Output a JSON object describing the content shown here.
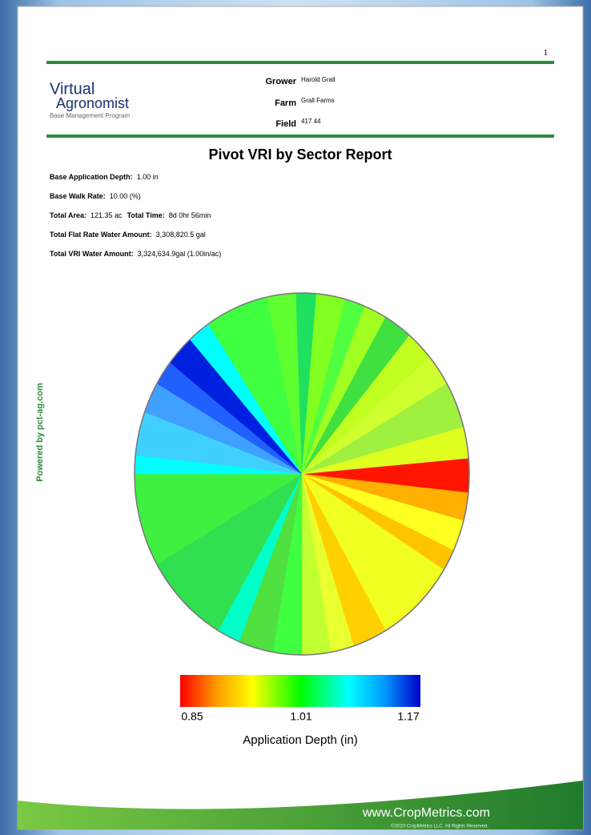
{
  "page_number": "1",
  "logo": {
    "line1": "Virtual",
    "line2": "Agronomist",
    "tagline": "Base Management Program"
  },
  "header": {
    "grower_label": "Grower",
    "grower": "Harold Grall",
    "farm_label": "Farm",
    "farm": "Grall Farms",
    "field_label": "Field",
    "field": "417 44"
  },
  "title": "Pivot VRI by Sector Report",
  "stats": [
    {
      "label": "Base Application Depth:",
      "value": "1.00  in"
    },
    {
      "label": "Base Walk Rate:",
      "value": "10.00  (%)"
    },
    {
      "label": "Total Area:",
      "value": "121.35  ac",
      "label2": "Total Time:",
      "value2": "8d 0hr 56min"
    },
    {
      "label": "Total Flat Rate Water Amount:",
      "value": "3,308,820.5  gal"
    },
    {
      "label": "Total VRI Water Amount:",
      "value": "3,324,634.9gal  (1.00in/ac)"
    }
  ],
  "side_text": "Powered by pct-ag.com",
  "colorbar": {
    "ticks": [
      "0.85",
      "1.01",
      "1.17"
    ],
    "label": "Application Depth (in)"
  },
  "footer": {
    "url": "www.CropMetrics.com",
    "copyright": "©2010 CropMetrics LLC. All Rights Reserved."
  }
}
